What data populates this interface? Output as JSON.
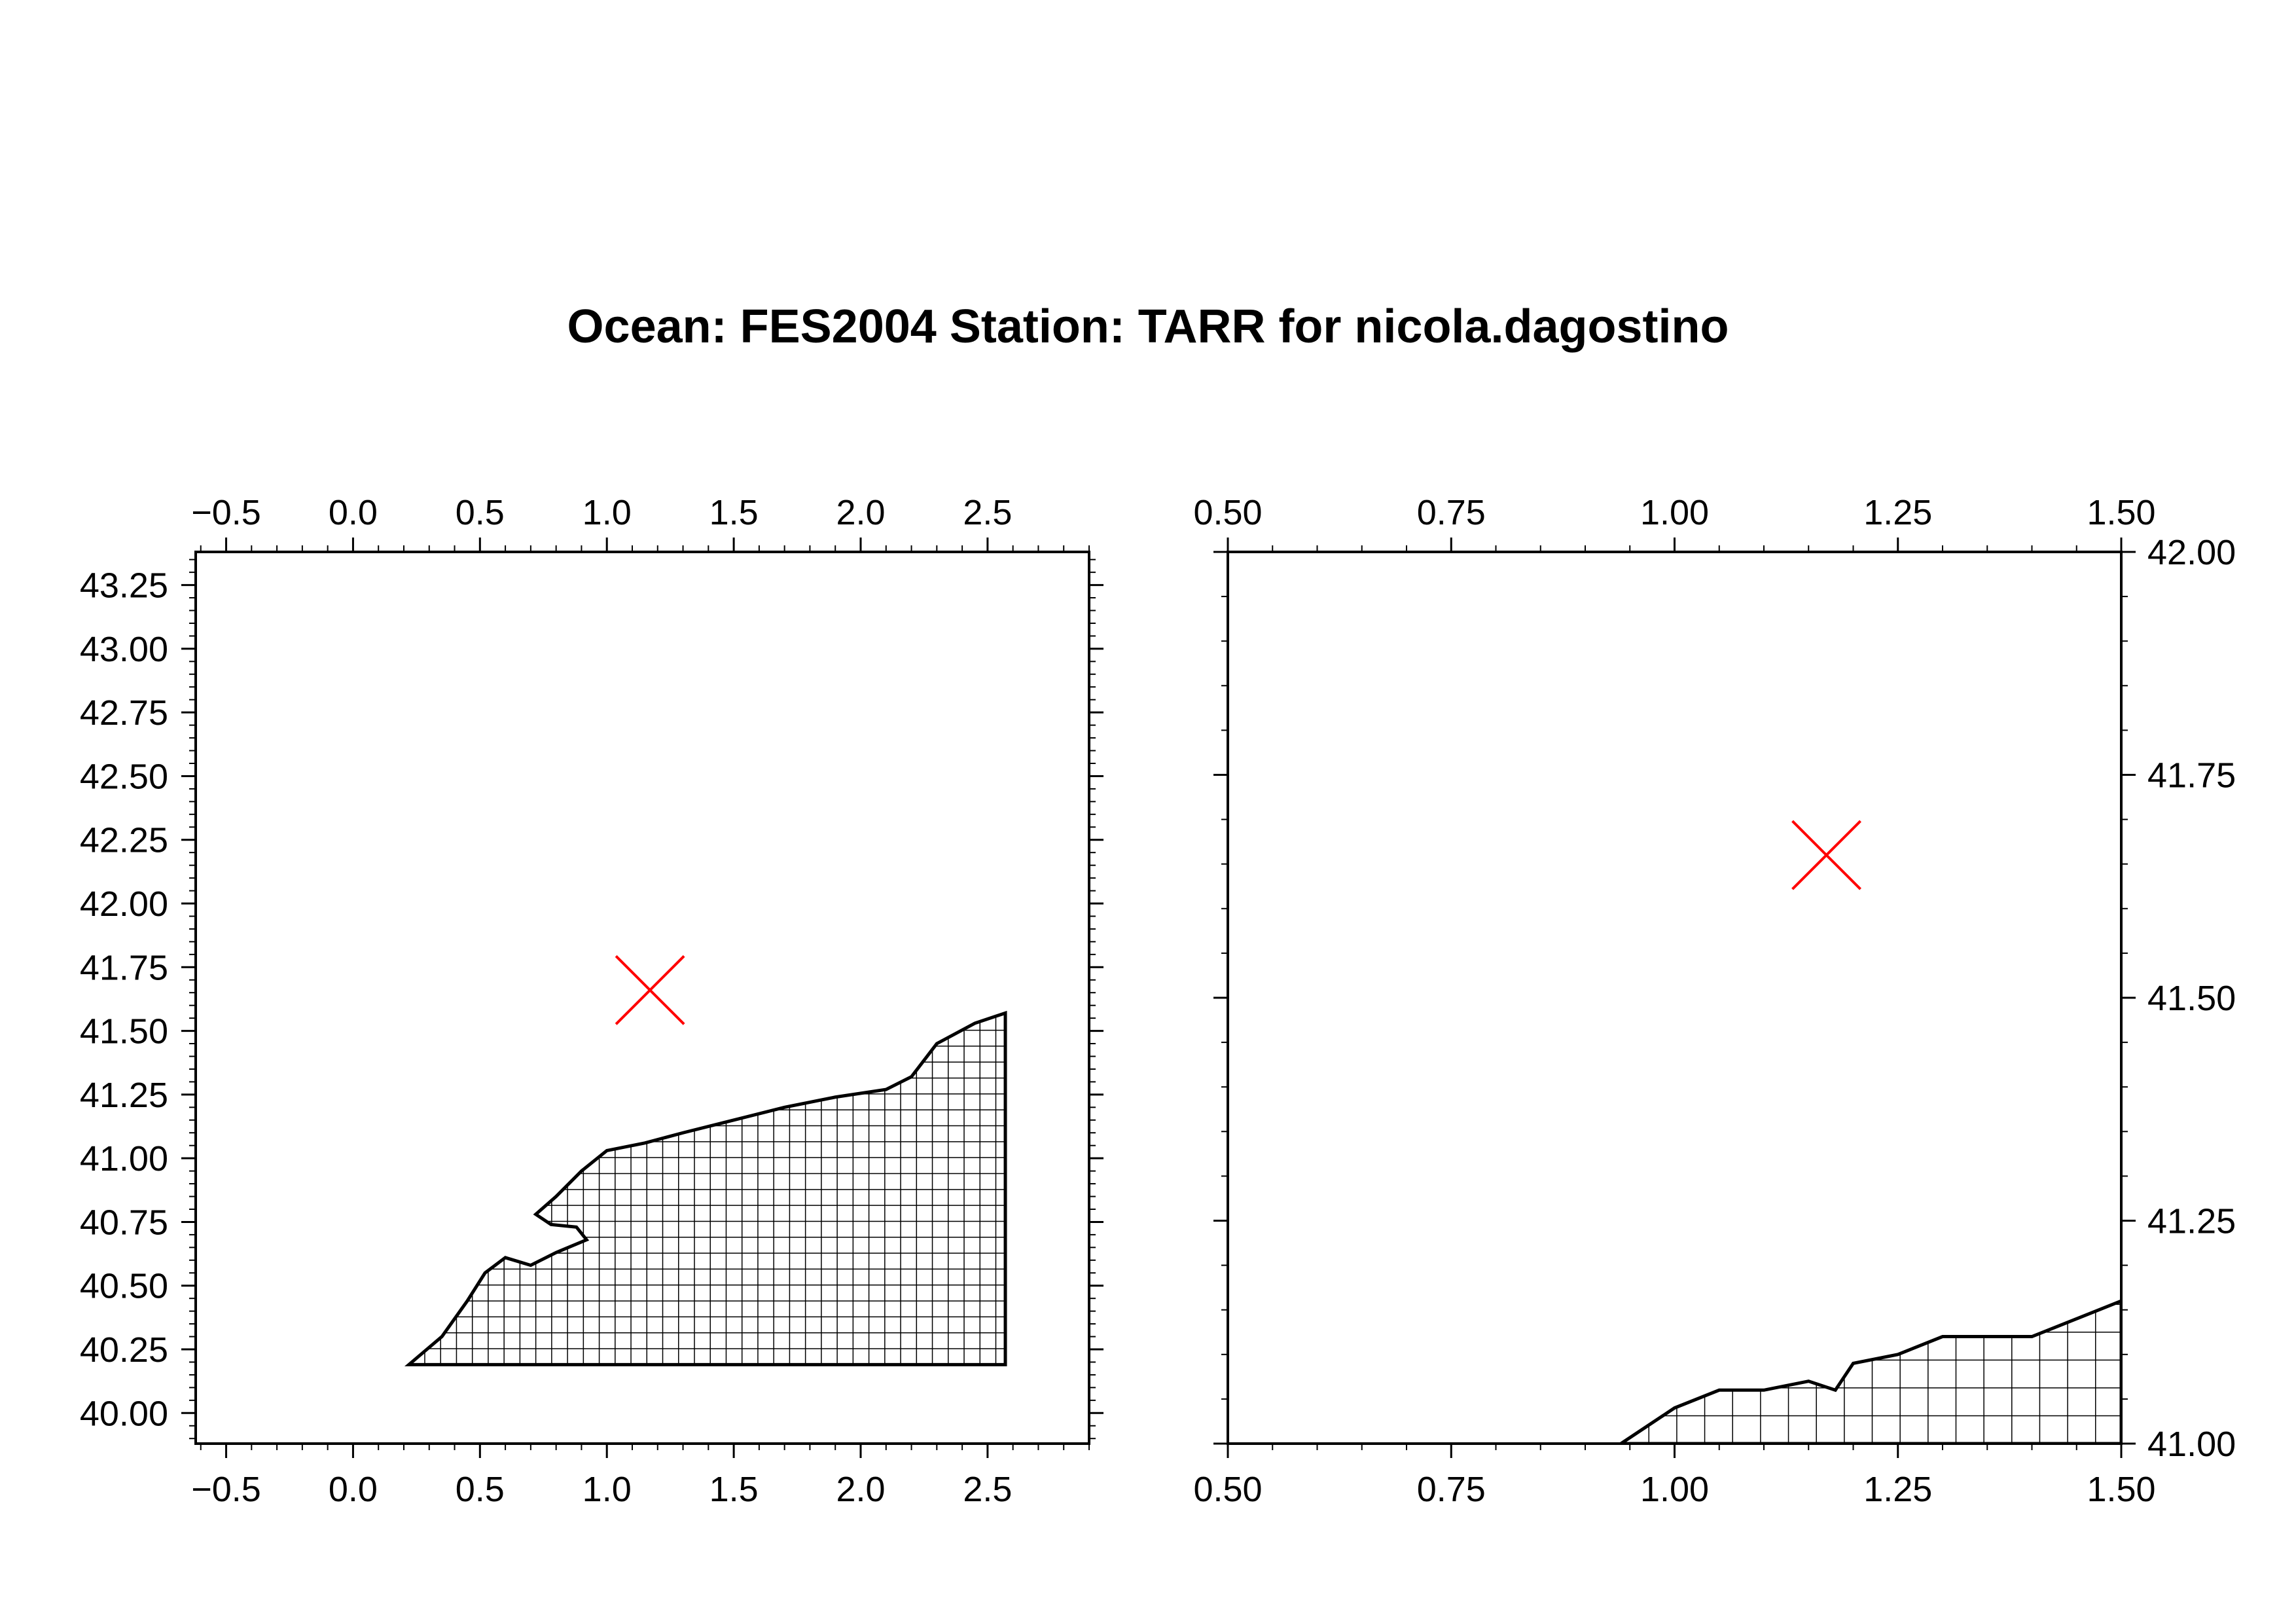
{
  "title": "Ocean: FES2004  Station: TARR  for nicola.dagostino",
  "colors": {
    "station_marker": "#ff0000",
    "grid": "#000000",
    "background": "#ffffff"
  },
  "chart_data": [
    {
      "type": "map",
      "name": "overview",
      "xlim": [
        -0.62,
        2.9
      ],
      "ylim": [
        39.88,
        43.38
      ],
      "x_ticks": [
        "-0.5",
        "0.0",
        "0.5",
        "1.0",
        "1.5",
        "2.0",
        "2.5"
      ],
      "x_tick_values": [
        -0.5,
        0.0,
        0.5,
        1.0,
        1.5,
        2.0,
        2.5
      ],
      "y_ticks": [
        "40.00",
        "40.25",
        "40.50",
        "40.75",
        "41.00",
        "41.25",
        "41.50",
        "41.75",
        "42.00",
        "42.25",
        "42.50",
        "42.75",
        "43.00",
        "43.25"
      ],
      "y_tick_values": [
        40.0,
        40.25,
        40.5,
        40.75,
        41.0,
        41.25,
        41.5,
        41.75,
        42.0,
        42.25,
        42.5,
        42.75,
        43.0,
        43.25
      ],
      "station": {
        "lon": 1.17,
        "lat": 41.66
      },
      "mesh_outline": [
        [
          0.22,
          40.19
        ],
        [
          0.35,
          40.3
        ],
        [
          0.45,
          40.44
        ],
        [
          0.52,
          40.55
        ],
        [
          0.6,
          40.61
        ],
        [
          0.7,
          40.58
        ],
        [
          0.8,
          40.63
        ],
        [
          0.92,
          40.68
        ],
        [
          0.88,
          40.73
        ],
        [
          0.78,
          40.74
        ],
        [
          0.72,
          40.78
        ],
        [
          0.8,
          40.85
        ],
        [
          0.9,
          40.95
        ],
        [
          1.0,
          41.03
        ],
        [
          1.15,
          41.06
        ],
        [
          1.3,
          41.1
        ],
        [
          1.5,
          41.15
        ],
        [
          1.7,
          41.2
        ],
        [
          1.9,
          41.24
        ],
        [
          2.1,
          41.27
        ],
        [
          2.2,
          41.32
        ],
        [
          2.3,
          41.45
        ],
        [
          2.45,
          41.53
        ],
        [
          2.57,
          41.57
        ],
        [
          2.57,
          40.19
        ]
      ]
    },
    {
      "type": "map",
      "name": "zoom",
      "xlim": [
        0.5,
        1.5
      ],
      "ylim": [
        41.0,
        42.0
      ],
      "x_ticks": [
        "0.50",
        "0.75",
        "1.00",
        "1.25",
        "1.50"
      ],
      "x_tick_values": [
        0.5,
        0.75,
        1.0,
        1.25,
        1.5
      ],
      "y_ticks": [
        "41.00",
        "41.25",
        "41.50",
        "41.75",
        "42.00"
      ],
      "y_tick_values": [
        41.0,
        41.25,
        41.5,
        41.75,
        42.0
      ],
      "station": {
        "lon": 1.17,
        "lat": 41.66
      },
      "mesh_outline": [
        [
          0.94,
          41.0
        ],
        [
          0.97,
          41.02
        ],
        [
          1.0,
          41.04
        ],
        [
          1.05,
          41.06
        ],
        [
          1.1,
          41.06
        ],
        [
          1.15,
          41.07
        ],
        [
          1.18,
          41.06
        ],
        [
          1.2,
          41.09
        ],
        [
          1.25,
          41.1
        ],
        [
          1.3,
          41.12
        ],
        [
          1.4,
          41.12
        ],
        [
          1.45,
          41.14
        ],
        [
          1.5,
          41.16
        ],
        [
          1.5,
          41.0
        ]
      ]
    }
  ]
}
